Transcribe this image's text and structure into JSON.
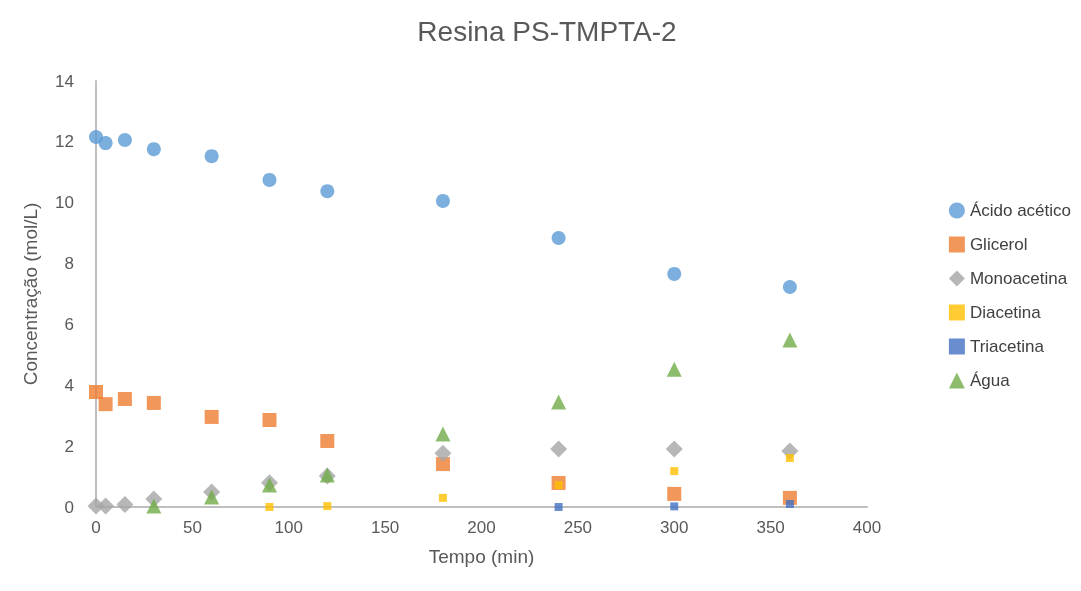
{
  "chart_data": {
    "type": "scatter",
    "title": "Resina PS-TMPTA-2",
    "xlabel": "Tempo (min)",
    "ylabel": "Concentração (mol/L)",
    "xlim": [
      0,
      400
    ],
    "xticks": [
      0,
      50,
      100,
      150,
      200,
      250,
      300,
      350,
      400
    ],
    "ylim": [
      0,
      14
    ],
    "yticks": [
      0,
      2,
      4,
      6,
      8,
      10,
      12,
      14
    ],
    "grid": false,
    "legend": "right",
    "series": [
      {
        "name": "Ácido acético",
        "color": "#5b9bd5",
        "marker": "circle",
        "x": [
          0,
          5,
          15,
          30,
          60,
          90,
          120,
          180,
          240,
          300,
          360
        ],
        "values": [
          12.16,
          11.96,
          12.06,
          11.76,
          11.53,
          10.75,
          10.38,
          10.06,
          8.84,
          7.66,
          7.23
        ]
      },
      {
        "name": "Glicerol",
        "color": "#ed7d31",
        "marker": "square",
        "x": [
          0,
          5,
          15,
          30,
          60,
          90,
          120,
          180,
          240,
          300,
          360
        ],
        "values": [
          3.78,
          3.38,
          3.55,
          3.42,
          2.96,
          2.86,
          2.17,
          1.41,
          0.79,
          0.43,
          0.3
        ]
      },
      {
        "name": "Monoacetina",
        "color": "#a5a5a5",
        "marker": "diamond",
        "x": [
          0,
          5,
          15,
          30,
          60,
          90,
          120,
          180,
          240,
          300,
          360
        ],
        "values": [
          0.03,
          0.03,
          0.08,
          0.26,
          0.49,
          0.8,
          1.02,
          1.77,
          1.91,
          1.91,
          1.84
        ]
      },
      {
        "name": "Diacetina",
        "color": "#ffc000",
        "marker": "square",
        "x": [
          90,
          120,
          180,
          240,
          300,
          360
        ],
        "values": [
          0,
          0.03,
          0.3,
          0.72,
          1.18,
          1.61
        ]
      },
      {
        "name": "Triacetina",
        "color": "#4472c4",
        "marker": "square",
        "x": [
          240,
          300,
          360
        ],
        "values": [
          0,
          0.02,
          0.1
        ]
      },
      {
        "name": "Água",
        "color": "#70ad47",
        "marker": "triangle",
        "x": [
          30,
          60,
          90,
          120,
          180,
          240,
          300,
          360
        ],
        "values": [
          0.03,
          0.33,
          0.72,
          1.05,
          2.4,
          3.45,
          4.53,
          5.49
        ]
      }
    ]
  }
}
